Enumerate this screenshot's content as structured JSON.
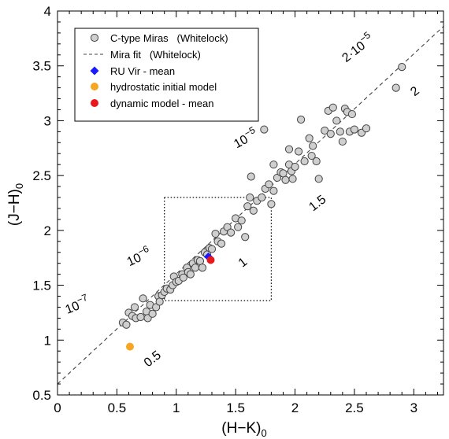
{
  "chart_data": {
    "type": "scatter",
    "xlabel": "(H−K)",
    "xlabel_sub": "0",
    "ylabel": "(J−H)",
    "ylabel_sub": "0",
    "xlim": [
      0,
      3.25
    ],
    "ylim": [
      0.5,
      4.0
    ],
    "xticks": [
      0,
      0.5,
      1,
      1.5,
      2,
      2.5,
      3
    ],
    "xtick_labels": [
      "0",
      "0.5",
      "1",
      "1.5",
      "2",
      "2.5",
      "3"
    ],
    "yticks": [
      0.5,
      1,
      1.5,
      2,
      2.5,
      3,
      3.5,
      4
    ],
    "ytick_labels": [
      "0.5",
      "1",
      "1.5",
      "2",
      "2.5",
      "3",
      "3.5",
      "4"
    ],
    "grid": false,
    "legend_position": "top-left",
    "colors": {
      "miras_fill": "#cfcfcf",
      "miras_edge": "#444444",
      "fit_line": "#444444",
      "ru_vir": "#1a1aff",
      "hydrostatic": "#f5a623",
      "dynamic": "#e8191c"
    },
    "series": [
      {
        "name": "C-type Miras   (Whitelock)",
        "marker": "circle",
        "points": [
          [
            0.55,
            1.16
          ],
          [
            0.58,
            1.14
          ],
          [
            0.6,
            1.25
          ],
          [
            0.63,
            1.22
          ],
          [
            0.65,
            1.3
          ],
          [
            0.66,
            1.2
          ],
          [
            0.7,
            1.21
          ],
          [
            0.72,
            1.38
          ],
          [
            0.75,
            1.26
          ],
          [
            0.76,
            1.2
          ],
          [
            0.78,
            1.32
          ],
          [
            0.8,
            1.24
          ],
          [
            0.83,
            1.3
          ],
          [
            0.85,
            1.4
          ],
          [
            0.86,
            1.35
          ],
          [
            0.88,
            1.41
          ],
          [
            0.9,
            1.44
          ],
          [
            0.92,
            1.47
          ],
          [
            0.95,
            1.46
          ],
          [
            0.97,
            1.5
          ],
          [
            0.98,
            1.58
          ],
          [
            1.0,
            1.53
          ],
          [
            1.02,
            1.54
          ],
          [
            1.05,
            1.6
          ],
          [
            1.06,
            1.57
          ],
          [
            1.09,
            1.66
          ],
          [
            1.1,
            1.62
          ],
          [
            1.12,
            1.6
          ],
          [
            1.14,
            1.7
          ],
          [
            1.16,
            1.66
          ],
          [
            1.18,
            1.73
          ],
          [
            1.2,
            1.72
          ],
          [
            1.22,
            1.66
          ],
          [
            1.24,
            1.8
          ],
          [
            1.26,
            1.78
          ],
          [
            1.28,
            1.84
          ],
          [
            1.3,
            1.83
          ],
          [
            1.33,
            1.97
          ],
          [
            1.35,
            1.9
          ],
          [
            1.38,
            1.88
          ],
          [
            1.4,
            1.99
          ],
          [
            1.43,
            2.03
          ],
          [
            1.46,
            1.98
          ],
          [
            1.5,
            2.11
          ],
          [
            1.52,
            2.03
          ],
          [
            1.55,
            2.09
          ],
          [
            1.58,
            1.94
          ],
          [
            1.6,
            2.22
          ],
          [
            1.62,
            2.3
          ],
          [
            1.63,
            2.49
          ],
          [
            1.65,
            2.18
          ],
          [
            1.68,
            2.27
          ],
          [
            1.72,
            2.3
          ],
          [
            1.75,
            2.38
          ],
          [
            1.78,
            2.42
          ],
          [
            1.8,
            2.24
          ],
          [
            1.82,
            2.6
          ],
          [
            1.82,
            2.36
          ],
          [
            1.85,
            2.48
          ],
          [
            1.88,
            2.53
          ],
          [
            1.9,
            2.52
          ],
          [
            1.92,
            2.46
          ],
          [
            1.95,
            2.6
          ],
          [
            1.97,
            2.54
          ],
          [
            1.98,
            2.47
          ],
          [
            2.0,
            2.58
          ],
          [
            2.03,
            2.72
          ],
          [
            2.05,
            3.01
          ],
          [
            2.08,
            2.63
          ],
          [
            2.12,
            2.84
          ],
          [
            2.14,
            2.68
          ],
          [
            2.15,
            2.77
          ],
          [
            2.18,
            2.63
          ],
          [
            2.2,
            2.47
          ],
          [
            2.25,
            2.91
          ],
          [
            2.28,
            3.09
          ],
          [
            2.3,
            2.88
          ],
          [
            2.32,
            3.12
          ],
          [
            2.35,
            3.0
          ],
          [
            2.38,
            2.9
          ],
          [
            2.4,
            2.81
          ],
          [
            2.42,
            3.11
          ],
          [
            2.44,
            3.08
          ],
          [
            2.46,
            2.9
          ],
          [
            2.48,
            3.06
          ],
          [
            2.5,
            2.92
          ],
          [
            2.56,
            2.89
          ],
          [
            2.6,
            2.93
          ],
          [
            1.74,
            2.92
          ],
          [
            1.95,
            2.74
          ],
          [
            2.85,
            3.3
          ],
          [
            2.9,
            3.49
          ]
        ]
      },
      {
        "name": "Mira fit   (Whitelock)",
        "marker": "dashed-line",
        "line": [
          [
            0,
            0.6
          ],
          [
            3.25,
            3.86
          ]
        ]
      },
      {
        "name": "RU Vir - mean",
        "marker": "diamond",
        "points": [
          [
            1.27,
            1.76
          ]
        ]
      },
      {
        "name": "hydrostatic initial model",
        "marker": "dot",
        "points": [
          [
            0.61,
            0.94
          ]
        ]
      },
      {
        "name": "dynamic model - mean",
        "marker": "dot",
        "points": [
          [
            1.29,
            1.73
          ]
        ]
      }
    ],
    "box": {
      "x": [
        0.9,
        1.8
      ],
      "y": [
        1.36,
        2.3
      ]
    },
    "annotations": [
      {
        "text": "2·10",
        "sup": "−5",
        "x": 2.55,
        "y": 3.63,
        "rotate": -38
      },
      {
        "text": "2",
        "x": 3.03,
        "y": 3.24,
        "rotate": -38
      },
      {
        "text": "10",
        "sup": "−5",
        "x": 1.6,
        "y": 2.8,
        "rotate": -28
      },
      {
        "text": "1.5",
        "x": 2.21,
        "y": 2.22,
        "rotate": -38
      },
      {
        "text": "10",
        "sup": "−6",
        "x": 0.7,
        "y": 1.72,
        "rotate": -25
      },
      {
        "text": "1",
        "x": 1.58,
        "y": 1.68,
        "rotate": -38
      },
      {
        "text": "10",
        "sup": "−7",
        "x": 0.18,
        "y": 1.28,
        "rotate": -22
      },
      {
        "text": "0.5",
        "x": 0.82,
        "y": 0.8,
        "rotate": -38
      }
    ]
  }
}
